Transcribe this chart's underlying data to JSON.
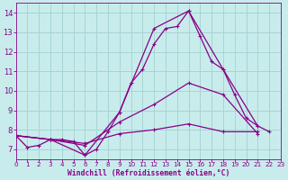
{
  "xlabel": "Windchill (Refroidissement éolien,°C)",
  "background_color": "#c8ecec",
  "grid_color": "#a8d4d4",
  "line_color": "#880088",
  "xlim": [
    0,
    23
  ],
  "ylim": [
    6.5,
    14.5
  ],
  "yticks": [
    7,
    8,
    9,
    10,
    11,
    12,
    13,
    14
  ],
  "xticks": [
    0,
    1,
    2,
    3,
    4,
    5,
    6,
    7,
    8,
    9,
    10,
    11,
    12,
    13,
    14,
    15,
    16,
    17,
    18,
    19,
    20,
    21,
    22,
    23
  ],
  "series": [
    {
      "x": [
        0,
        1,
        2,
        3,
        4,
        5,
        6,
        7,
        8,
        9,
        10,
        11,
        12,
        13,
        14,
        15,
        16,
        17,
        18,
        19,
        20,
        21,
        22
      ],
      "y": [
        7.7,
        7.1,
        7.2,
        7.5,
        7.5,
        7.4,
        6.7,
        7.0,
        7.9,
        8.9,
        10.4,
        11.1,
        12.4,
        13.2,
        13.3,
        14.1,
        12.8,
        11.5,
        11.1,
        9.8,
        8.6,
        8.2,
        7.9
      ]
    },
    {
      "x": [
        0,
        3,
        6,
        9,
        12,
        15,
        18,
        21
      ],
      "y": [
        7.7,
        7.5,
        6.7,
        8.9,
        13.2,
        14.1,
        11.1,
        8.2
      ]
    },
    {
      "x": [
        0,
        3,
        6,
        9,
        12,
        15,
        18,
        21
      ],
      "y": [
        7.7,
        7.5,
        7.2,
        8.4,
        9.3,
        10.4,
        9.8,
        7.8
      ]
    },
    {
      "x": [
        0,
        3,
        6,
        9,
        12,
        15,
        18,
        21
      ],
      "y": [
        7.7,
        7.5,
        7.3,
        7.8,
        8.0,
        8.3,
        7.9,
        7.9
      ]
    }
  ]
}
